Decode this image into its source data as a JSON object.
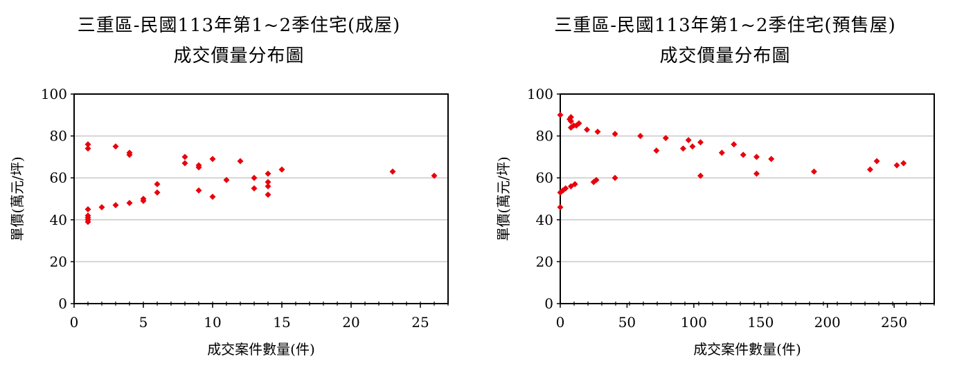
{
  "chart_data": [
    {
      "type": "scatter",
      "title": "三重區-民國113年第1~2季住宅(成屋)",
      "subtitle": "成交價量分布圖",
      "xlabel": "成交案件數量(件)",
      "ylabel": "單價(萬元/坪)",
      "xlim": [
        0,
        27
      ],
      "ylim": [
        0,
        100
      ],
      "xticks": [
        0,
        5,
        10,
        15,
        20,
        25
      ],
      "yticks": [
        0,
        20,
        40,
        60,
        80,
        100
      ],
      "grid": true,
      "marker_color": "#e8000b",
      "points": [
        [
          1,
          76
        ],
        [
          1,
          74
        ],
        [
          1,
          45
        ],
        [
          1,
          42
        ],
        [
          1,
          41
        ],
        [
          1,
          40
        ],
        [
          1,
          39
        ],
        [
          2,
          46
        ],
        [
          3,
          75
        ],
        [
          3,
          47
        ],
        [
          4,
          72
        ],
        [
          4,
          71
        ],
        [
          4,
          48
        ],
        [
          5,
          50
        ],
        [
          5,
          49
        ],
        [
          6,
          57
        ],
        [
          6,
          53
        ],
        [
          8,
          70
        ],
        [
          8,
          67
        ],
        [
          9,
          66
        ],
        [
          9,
          65
        ],
        [
          9,
          54
        ],
        [
          10,
          69
        ],
        [
          10,
          51
        ],
        [
          11,
          59
        ],
        [
          12,
          68
        ],
        [
          13,
          60
        ],
        [
          13,
          55
        ],
        [
          14,
          62
        ],
        [
          14,
          58
        ],
        [
          14,
          56
        ],
        [
          14,
          52
        ],
        [
          15,
          64
        ],
        [
          23,
          63
        ],
        [
          26,
          61
        ]
      ]
    },
    {
      "type": "scatter",
      "title": "三重區-民國113年第1~2季住宅(預售屋)",
      "subtitle": "成交價量分布圖",
      "xlabel": "成交案件數量(件)",
      "ylabel": "單價(萬元/坪)",
      "xlim": [
        0,
        280
      ],
      "ylim": [
        0,
        100
      ],
      "xticks": [
        0,
        50,
        100,
        150,
        200,
        250
      ],
      "yticks": [
        0,
        20,
        40,
        60,
        80,
        100
      ],
      "grid": true,
      "marker_color": "#e8000b",
      "points": [
        [
          0,
          90
        ],
        [
          0,
          53
        ],
        [
          0,
          46
        ],
        [
          2,
          54
        ],
        [
          4,
          55
        ],
        [
          7,
          88
        ],
        [
          8,
          89
        ],
        [
          8,
          87
        ],
        [
          8,
          84
        ],
        [
          8,
          56
        ],
        [
          10,
          85
        ],
        [
          11,
          57
        ],
        [
          12,
          85
        ],
        [
          14,
          86
        ],
        [
          20,
          83
        ],
        [
          25,
          58
        ],
        [
          27,
          59
        ],
        [
          28,
          82
        ],
        [
          41,
          81
        ],
        [
          41,
          60
        ],
        [
          60,
          80
        ],
        [
          72,
          73
        ],
        [
          79,
          79
        ],
        [
          92,
          74
        ],
        [
          96,
          78
        ],
        [
          99,
          75
        ],
        [
          105,
          77
        ],
        [
          105,
          61
        ],
        [
          121,
          72
        ],
        [
          130,
          76
        ],
        [
          137,
          71
        ],
        [
          147,
          70
        ],
        [
          147,
          62
        ],
        [
          158,
          69
        ],
        [
          190,
          63
        ],
        [
          232,
          64
        ],
        [
          237,
          68
        ],
        [
          252,
          66
        ],
        [
          257,
          67
        ]
      ]
    }
  ]
}
